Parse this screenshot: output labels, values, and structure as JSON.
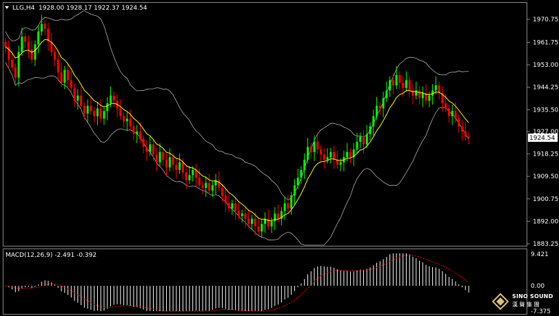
{
  "header": {
    "symbol": "LLG,H4",
    "ohlc": "1928.00 1928.17 1922.37 1924.54"
  },
  "macd_header": "MACD(12,26,9) -2.491 -0.392",
  "brand": {
    "name": "SINO SOUND",
    "sub": "漢 聲 集 團"
  },
  "colors": {
    "background": "#000000",
    "bull": "#00ff00",
    "bear": "#ff0000",
    "ma": "#ffff00",
    "bands": "#b0b0b0",
    "macd_hist": "#ffffff",
    "macd_signal": "#ff0000",
    "price_tag_bg": "#ffffff",
    "price_tag_text": "#000000"
  },
  "chart_data": [
    {
      "type": "candlestick",
      "title": "LLG,H4",
      "y_ticks": [
        "1970.75",
        "1961.75",
        "1953.00",
        "1944.25",
        "1935.50",
        "1927.00",
        "1918.25",
        "1909.50",
        "1900.75",
        "1892.00",
        "1883.25"
      ],
      "ylim": [
        1883.25,
        1973.5
      ],
      "current_price": "1924.54",
      "closes": [
        1960,
        1955,
        1952,
        1948,
        1958,
        1964,
        1962,
        1959,
        1955,
        1961,
        1966,
        1969,
        1967,
        1962,
        1958,
        1955,
        1950,
        1946,
        1951,
        1947,
        1944,
        1939,
        1941,
        1937,
        1934,
        1937,
        1935,
        1933,
        1936,
        1932,
        1935,
        1938,
        1941,
        1939,
        1936,
        1933,
        1931,
        1932,
        1929,
        1926,
        1927,
        1924,
        1921,
        1919,
        1922,
        1918,
        1915,
        1919,
        1916,
        1913,
        1917,
        1914,
        1912,
        1915,
        1911,
        1908,
        1910,
        1912,
        1909,
        1906,
        1905,
        1907,
        1904,
        1906,
        1908,
        1905,
        1902,
        1899,
        1897,
        1899,
        1896,
        1894,
        1895,
        1893,
        1891,
        1893,
        1890,
        1888,
        1891,
        1893,
        1890,
        1892,
        1895,
        1893,
        1896,
        1899,
        1897,
        1902,
        1906,
        1909,
        1912,
        1916,
        1921,
        1919,
        1923,
        1920,
        1918,
        1916,
        1917,
        1919,
        1916,
        1914,
        1915,
        1917,
        1919,
        1917,
        1920,
        1923,
        1925,
        1922,
        1926,
        1929,
        1933,
        1937,
        1936,
        1940,
        1943,
        1947,
        1945,
        1949,
        1946,
        1944,
        1947,
        1943,
        1941,
        1943,
        1940,
        1942,
        1939,
        1941,
        1943,
        1945,
        1942,
        1938,
        1936,
        1933,
        1935,
        1932,
        1929,
        1927,
        1925,
        1924.5
      ],
      "ma": "yellow moving average of closes",
      "bands": "gray upper and lower envelope"
    },
    {
      "type": "bar",
      "title": "MACD(12,26,9)",
      "y_ticks": [
        "9.421",
        "0.00",
        "-7.375"
      ],
      "ylim": [
        -7.375,
        9.421
      ],
      "macd": -2.491,
      "signal": -0.392
    }
  ]
}
